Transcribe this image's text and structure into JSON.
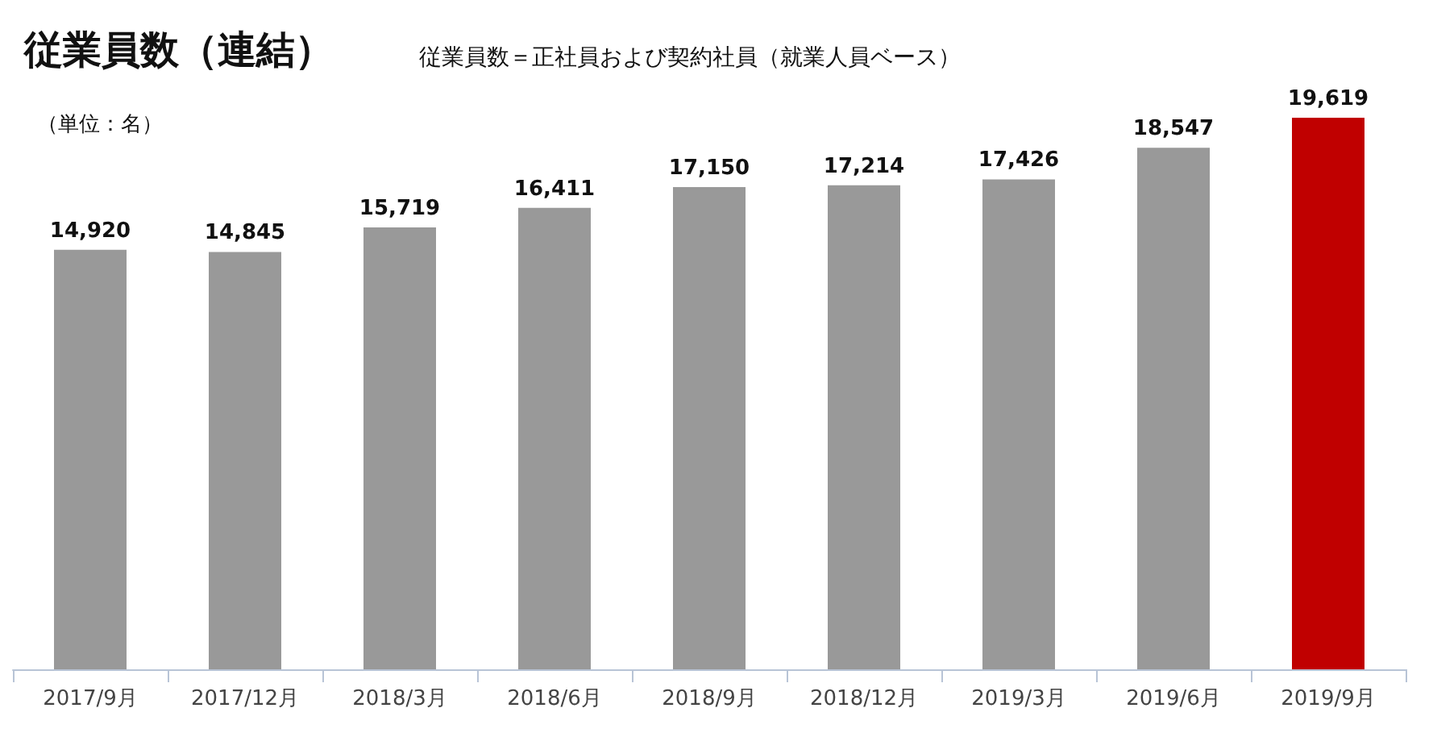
{
  "chart_data": {
    "type": "bar",
    "title": "従業員数（連結）",
    "subtitle": "従業員数＝正社員および契約社員（就業人員ベース）",
    "annotations": [
      "（単位：名）"
    ],
    "categories": [
      "2017/9月",
      "2017/12月",
      "2018/3月",
      "2018/6月",
      "2018/9月",
      "2018/12月",
      "2019/3月",
      "2019/6月",
      "2019/9月"
    ],
    "values": [
      14920,
      14845,
      15719,
      16411,
      17150,
      17214,
      17426,
      18547,
      19619
    ],
    "colors": [
      "#999999",
      "#999999",
      "#999999",
      "#999999",
      "#999999",
      "#999999",
      "#999999",
      "#999999",
      "#c00000"
    ],
    "value_labels": [
      "14,920",
      "14,845",
      "15,719",
      "16,411",
      "17,150",
      "17,214",
      "17,426",
      "18,547",
      "19,619"
    ]
  }
}
